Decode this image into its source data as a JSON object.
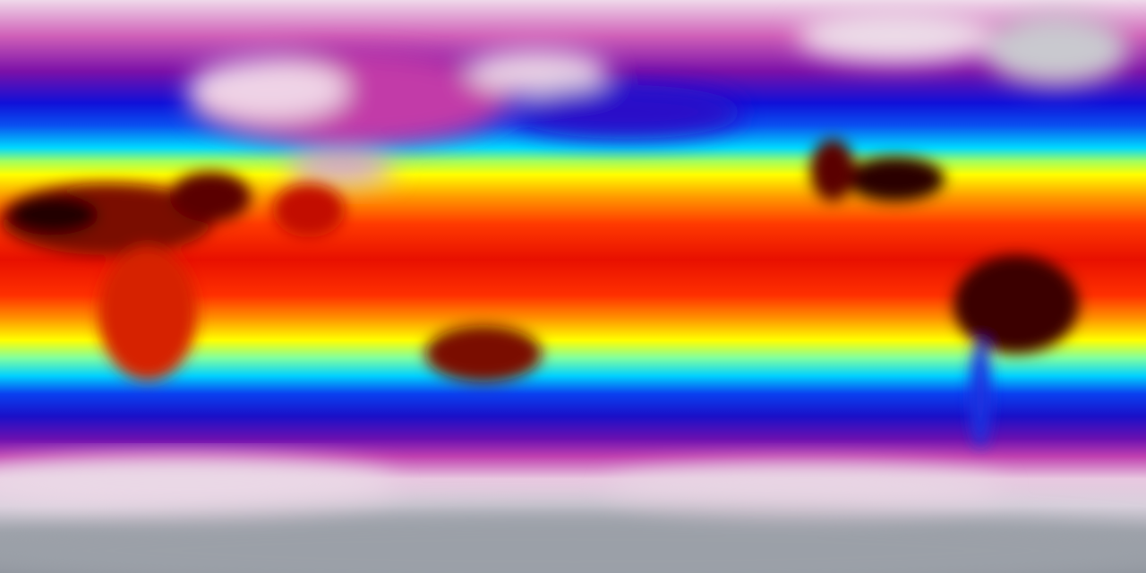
{
  "map": {
    "projection": "equirectangular",
    "colormap": [
      "#9aa0a8",
      "#f2dcec",
      "#b0189c",
      "#0a14e0",
      "#00ccff",
      "#ffff00",
      "#ff8800",
      "#ee1100",
      "#5a0000",
      "#1a0a0a"
    ]
  }
}
